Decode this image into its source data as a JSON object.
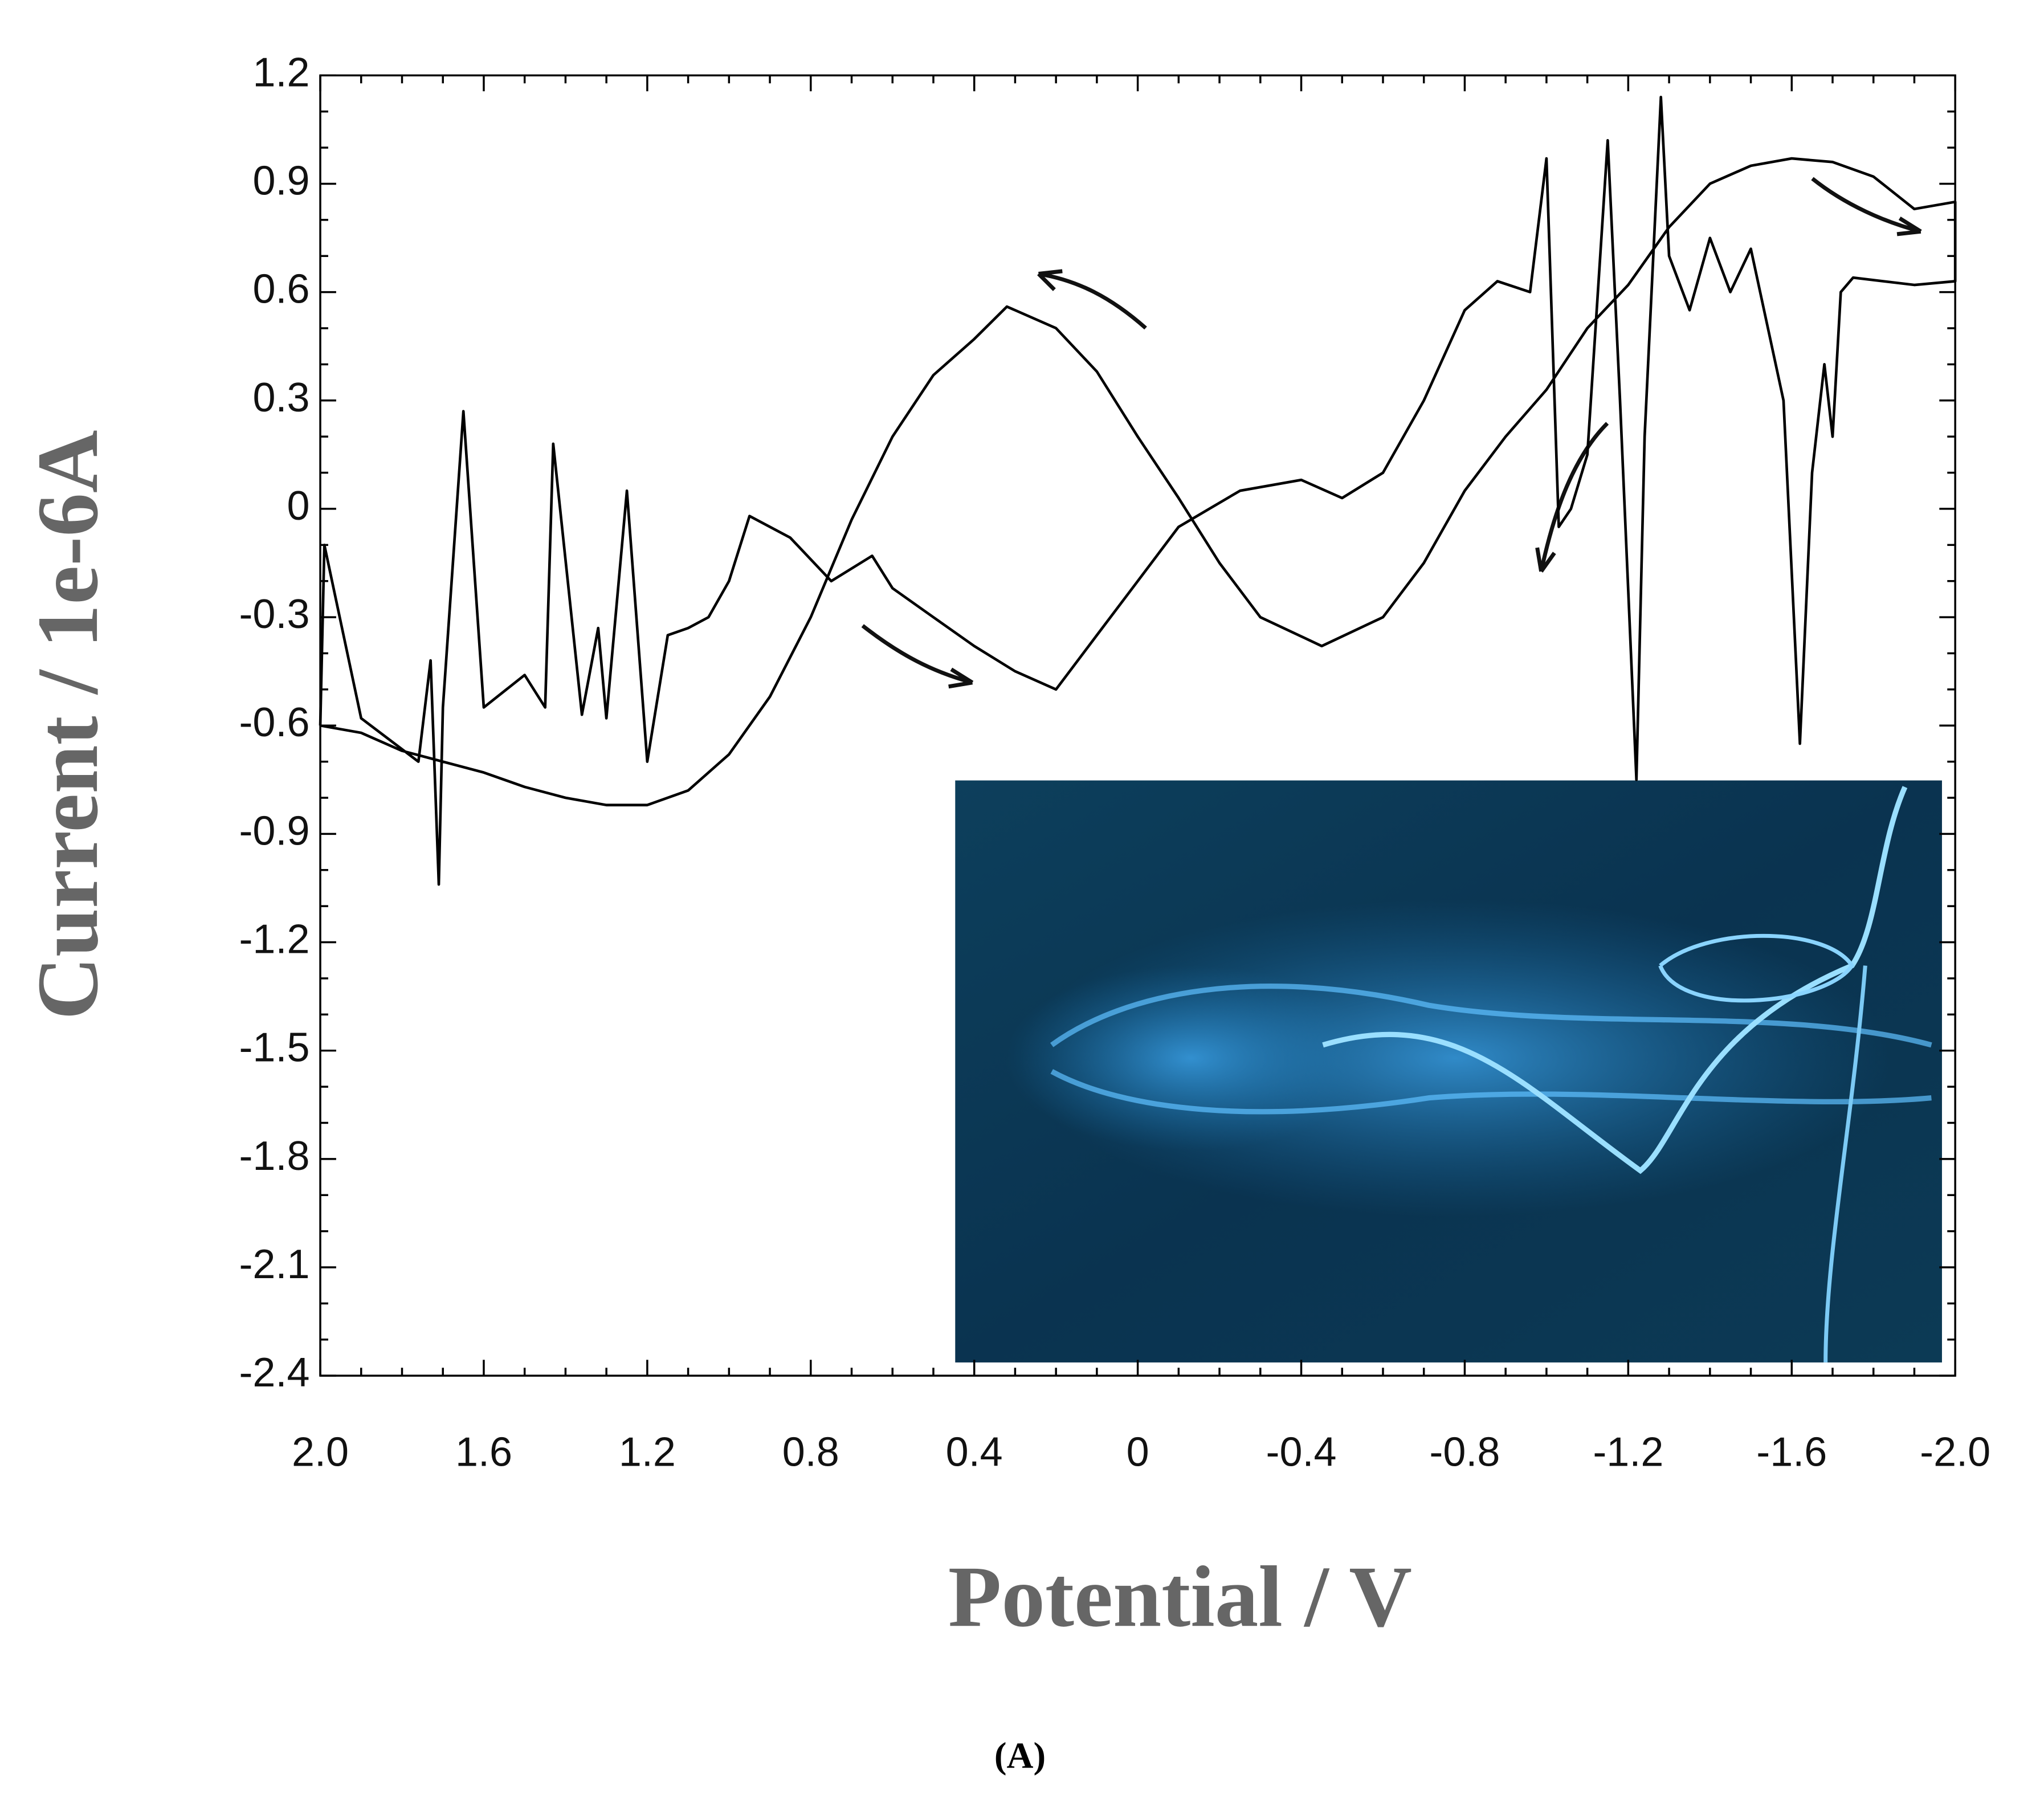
{
  "chart_data": {
    "type": "line",
    "x_label": "Potential / V",
    "y_label": "Current / 1e-6A",
    "caption": "(A)",
    "color": "#000000",
    "x": [
      2.0,
      1.9,
      1.8,
      1.7,
      1.6,
      1.5,
      1.4,
      1.3,
      1.2,
      1.1,
      1.0,
      0.9,
      0.8,
      0.7,
      0.6,
      0.5,
      0.4,
      0.32,
      0.2,
      0.1,
      0.0,
      -0.1,
      -0.2,
      -0.3,
      -0.45,
      -0.6,
      -0.7,
      -0.8,
      -0.9,
      -1.0,
      -1.1,
      -1.2,
      -1.3,
      -1.4,
      -1.5,
      -1.6,
      -1.7,
      -1.8,
      -1.9,
      -2.0,
      -2.0,
      -1.9,
      -1.75,
      -1.72,
      -1.7,
      -1.68,
      -1.65,
      -1.62,
      -1.58,
      -1.5,
      -1.45,
      -1.4,
      -1.35,
      -1.3,
      -1.28,
      -1.24,
      -1.22,
      -1.18,
      -1.15,
      -1.1,
      -1.06,
      -1.03,
      -1.0,
      -0.96,
      -0.88,
      -0.8,
      -0.7,
      -0.6,
      -0.5,
      -0.4,
      -0.25,
      -0.1,
      0.0,
      0.1,
      0.2,
      0.3,
      0.4,
      0.5,
      0.6,
      0.65,
      0.75,
      0.85,
      0.95,
      1.0,
      1.05,
      1.1,
      1.15,
      1.2,
      1.25,
      1.3,
      1.32,
      1.36,
      1.43,
      1.45,
      1.5,
      1.6,
      1.65,
      1.7,
      1.71,
      1.73,
      1.76,
      1.9,
      1.99,
      2.0
    ],
    "values": [
      -0.6,
      -0.62,
      -0.67,
      -0.7,
      -0.73,
      -0.77,
      -0.8,
      -0.82,
      -0.82,
      -0.78,
      -0.68,
      -0.52,
      -0.3,
      -0.03,
      0.2,
      0.37,
      0.47,
      0.56,
      0.5,
      0.38,
      0.2,
      0.03,
      -0.15,
      -0.3,
      -0.38,
      -0.3,
      -0.15,
      0.05,
      0.2,
      0.33,
      0.5,
      0.62,
      0.78,
      0.9,
      0.95,
      0.97,
      0.96,
      0.92,
      0.83,
      0.85,
      0.63,
      0.62,
      0.64,
      0.6,
      0.2,
      0.4,
      0.1,
      -0.65,
      0.3,
      0.72,
      0.6,
      0.75,
      0.55,
      0.7,
      1.14,
      0.2,
      -0.75,
      0.3,
      1.02,
      0.15,
      0.0,
      -0.05,
      0.97,
      0.6,
      0.63,
      0.55,
      0.3,
      0.1,
      0.03,
      0.08,
      0.05,
      -0.05,
      -0.2,
      -0.35,
      -0.5,
      -0.45,
      -0.38,
      -0.3,
      -0.22,
      -0.13,
      -0.2,
      -0.08,
      -0.02,
      -0.2,
      -0.3,
      -0.33,
      -0.35,
      -0.7,
      0.05,
      -0.58,
      -0.33,
      -0.57,
      0.18,
      -0.55,
      -0.46,
      -0.55,
      0.27,
      -0.55,
      -1.04,
      -0.42,
      -0.7,
      -0.58,
      -0.1,
      -0.6
    ],
    "xlim": [
      2.0,
      -2.0
    ],
    "xticks": [
      {
        "value": 2.0,
        "label": "2.0"
      },
      1.6,
      1.2,
      0.8,
      0.4,
      0,
      -0.4,
      -0.8,
      -1.2,
      -1.6,
      {
        "value": -2.0,
        "label": "-2.0"
      }
    ],
    "ylim": [
      -2.4,
      1.2
    ],
    "yticks": [
      1.2,
      0.9,
      0.6,
      0.3,
      0,
      -0.3,
      -0.6,
      -0.9,
      -1.2,
      -1.5,
      -1.8,
      -2.1,
      -2.4
    ],
    "grid": false
  }
}
